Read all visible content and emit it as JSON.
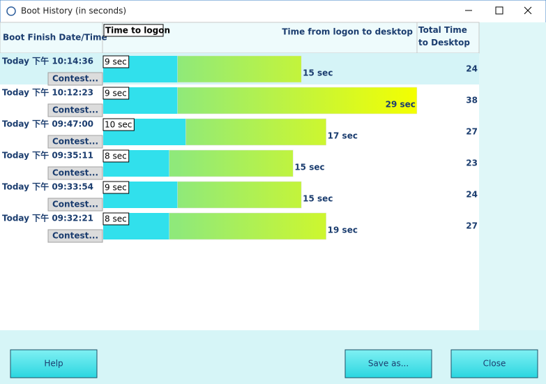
{
  "window": {
    "title": "Boot History (in seconds)"
  },
  "table": {
    "headers": {
      "date": "Boot Finish Date/Time",
      "logon": "Time to logon",
      "desktop": "Time from logon to desktop",
      "total": "Total Time to Desktop"
    },
    "rows": [
      {
        "date": "Today  下午 10:14:36",
        "button": "Contest...",
        "logon": 9,
        "logon_label": "9 sec",
        "desktop": 15,
        "desktop_label": "15 sec",
        "total": 24
      },
      {
        "date": "Today  下午 10:12:23",
        "button": "Contest...",
        "logon": 9,
        "logon_label": "9 sec",
        "desktop": 29,
        "desktop_label": "29 sec",
        "total": 38
      },
      {
        "date": "Today  下午 09:47:00",
        "button": "Contest...",
        "logon": 10,
        "logon_label": "10 sec",
        "desktop": 17,
        "desktop_label": "17 sec",
        "total": 27
      },
      {
        "date": "Today  下午 09:35:11",
        "button": "Contest...",
        "logon": 8,
        "logon_label": "8 sec",
        "desktop": 15,
        "desktop_label": "15 sec",
        "total": 23
      },
      {
        "date": "Today  下午 09:33:54",
        "button": "Contest...",
        "logon": 9,
        "logon_label": "9 sec",
        "desktop": 15,
        "desktop_label": "15 sec",
        "total": 24
      },
      {
        "date": "Today  下午 09:32:21",
        "button": "Contest...",
        "logon": 8,
        "logon_label": "8 sec",
        "desktop": 19,
        "desktop_label": "19 sec",
        "total": 27
      }
    ]
  },
  "buttons": {
    "help": "Help",
    "save": "Save as...",
    "close": "Close"
  }
}
